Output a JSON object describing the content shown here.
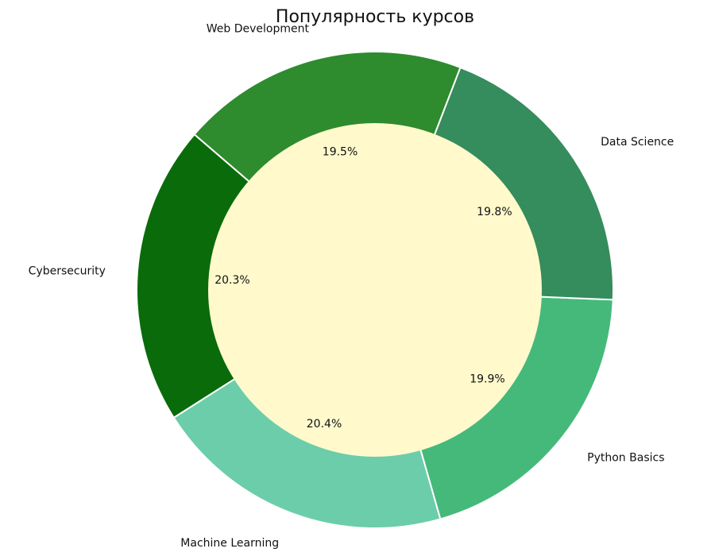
{
  "chart_data": {
    "type": "pie",
    "style": "donut",
    "title": "Популярность курсов",
    "start_angle_deg": 69,
    "direction": "counterclockwise",
    "slices": [
      {
        "label": "Web Development",
        "value": 19.5,
        "pct_label": "19.5%",
        "color": "#2e8b2e"
      },
      {
        "label": "Cybersecurity",
        "value": 20.3,
        "pct_label": "20.3%",
        "color": "#0a6b0a"
      },
      {
        "label": "Machine Learning",
        "value": 20.4,
        "pct_label": "20.4%",
        "color": "#6ccdaa"
      },
      {
        "label": "Python Basics",
        "value": 19.9,
        "pct_label": "19.9%",
        "color": "#45b97a"
      },
      {
        "label": "Data Science",
        "value": 19.8,
        "pct_label": "19.8%",
        "color": "#358c5c"
      }
    ],
    "center_color": "#fff9cc"
  }
}
